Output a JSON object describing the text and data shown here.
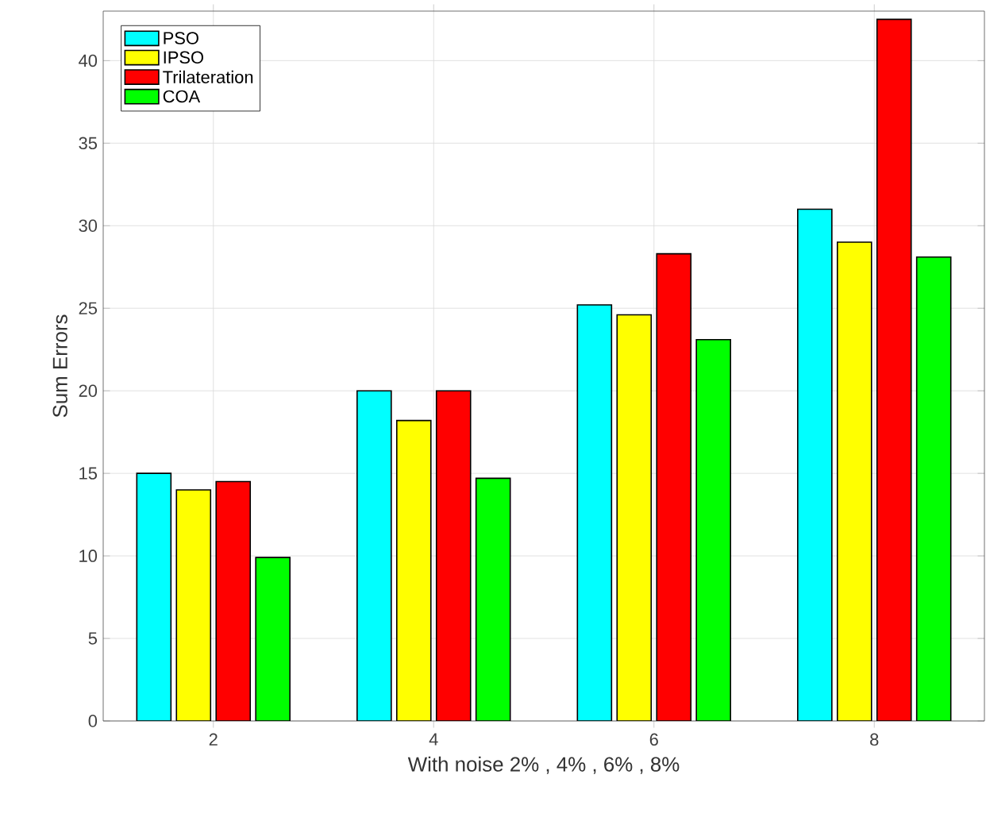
{
  "chart_data": {
    "type": "bar",
    "xlabel": "With noise 2% , 4% , 6% , 8%",
    "ylabel": "Sum Errors",
    "categories": [
      "2",
      "4",
      "6",
      "8"
    ],
    "series": [
      {
        "name": "PSO",
        "color": "#00ffff",
        "values": [
          15,
          20,
          25.2,
          31
        ]
      },
      {
        "name": "IPSO",
        "color": "#ffff00",
        "values": [
          14,
          18.2,
          24.6,
          29
        ]
      },
      {
        "name": "Trilateration",
        "color": "#ff0000",
        "values": [
          14.5,
          20,
          28.3,
          42.5
        ]
      },
      {
        "name": "COA",
        "color": "#00ff00",
        "values": [
          9.9,
          14.7,
          23.1,
          28.1
        ]
      }
    ],
    "ylim": [
      0,
      43
    ],
    "yticks": [
      0,
      5,
      10,
      15,
      20,
      25,
      30,
      35,
      40
    ],
    "grid": true,
    "legend": "top left"
  }
}
